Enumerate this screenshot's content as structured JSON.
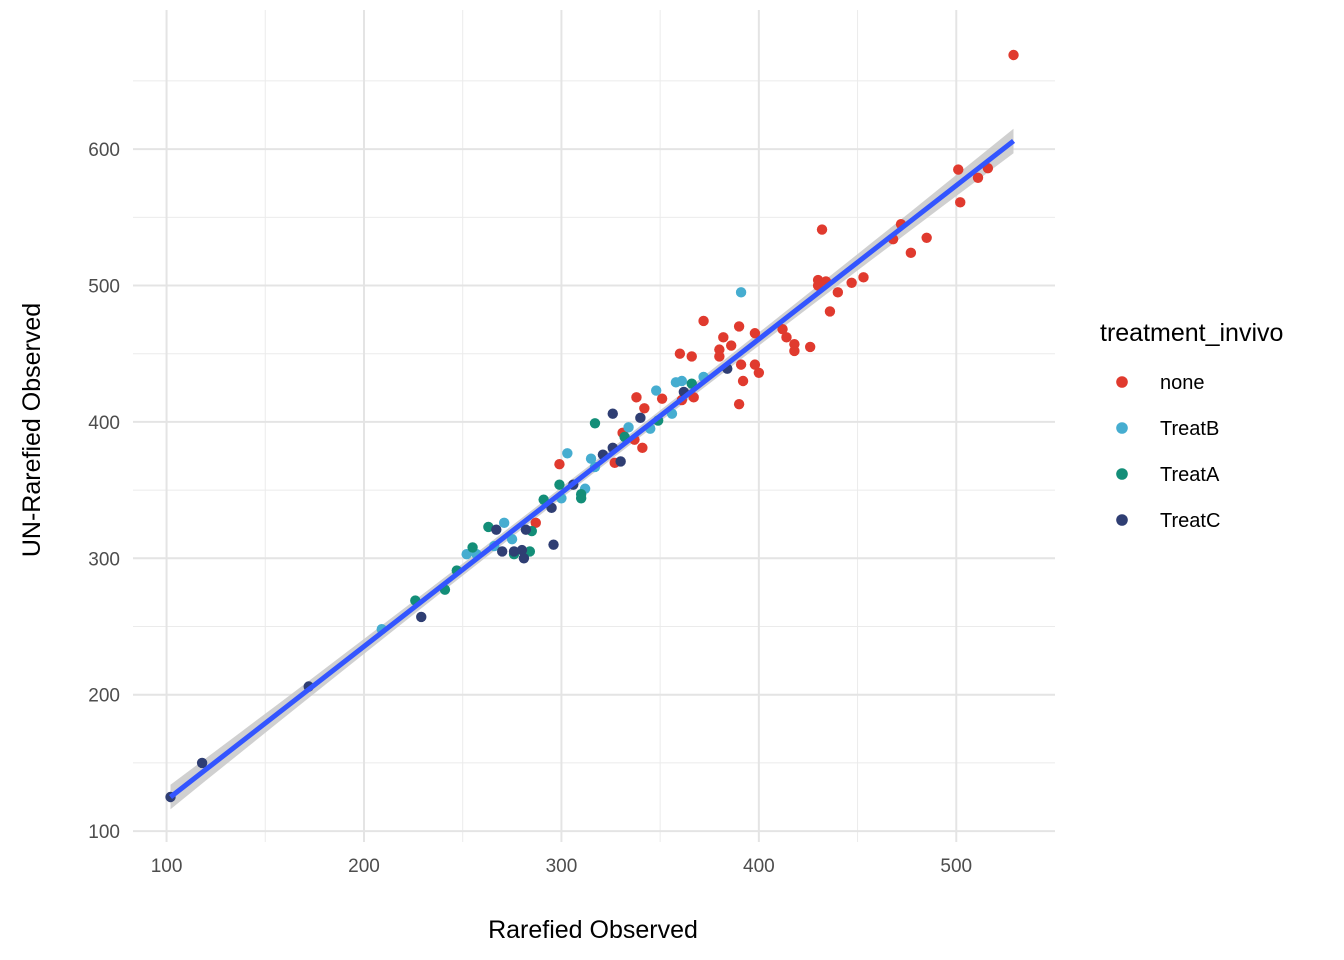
{
  "chart_data": {
    "type": "scatter",
    "xlabel": "Rarefied Observed",
    "ylabel": "UN-Rarefied Observed",
    "xlim": [
      83,
      550
    ],
    "ylim": [
      92,
      702
    ],
    "x_ticks": [
      100,
      200,
      300,
      400,
      500
    ],
    "y_ticks": [
      100,
      200,
      300,
      400,
      500,
      600
    ],
    "x_tick_labels": [
      "100",
      "200",
      "300",
      "400",
      "500"
    ],
    "y_tick_labels": [
      "100",
      "200",
      "300",
      "400",
      "500",
      "600"
    ],
    "grid": true,
    "legend": {
      "title": "treatment_invivo",
      "position": "right",
      "entries": [
        {
          "label": "none",
          "color": "#E03A2E"
        },
        {
          "label": "TreatB",
          "color": "#46ADD0"
        },
        {
          "label": "TreatA",
          "color": "#138E78"
        },
        {
          "label": "TreatC",
          "color": "#2F3E73"
        }
      ]
    },
    "trend_line": {
      "color": "#3355FF",
      "band_color": "#C8C8C8",
      "points": [
        [
          102,
          125
        ],
        [
          529,
          606
        ]
      ],
      "band_halfwidth_ends": 9,
      "band_halfwidth_mid": 4
    },
    "series": [
      {
        "name": "none",
        "color": "#E03A2E",
        "points": [
          [
            529,
            669
          ],
          [
            501,
            585
          ],
          [
            516,
            586
          ],
          [
            511,
            579
          ],
          [
            502,
            561
          ],
          [
            472,
            545
          ],
          [
            468,
            534
          ],
          [
            485,
            535
          ],
          [
            477,
            524
          ],
          [
            432,
            541
          ],
          [
            430,
            504
          ],
          [
            434,
            503
          ],
          [
            447,
            502
          ],
          [
            453,
            506
          ],
          [
            430,
            500
          ],
          [
            440,
            495
          ],
          [
            436,
            481
          ],
          [
            426,
            455
          ],
          [
            412,
            468
          ],
          [
            414,
            462
          ],
          [
            418,
            457
          ],
          [
            418,
            452
          ],
          [
            398,
            465
          ],
          [
            390,
            470
          ],
          [
            391,
            442
          ],
          [
            392,
            430
          ],
          [
            390,
            413
          ],
          [
            398,
            442
          ],
          [
            400,
            436
          ],
          [
            386,
            456
          ],
          [
            382,
            462
          ],
          [
            380,
            453
          ],
          [
            380,
            448
          ],
          [
            372,
            474
          ],
          [
            360,
            450
          ],
          [
            366,
            448
          ],
          [
            367,
            418
          ],
          [
            361,
            416
          ],
          [
            351,
            417
          ],
          [
            338,
            418
          ],
          [
            342,
            410
          ],
          [
            337,
            387
          ],
          [
            341,
            381
          ],
          [
            331,
            392
          ],
          [
            327,
            370
          ],
          [
            299,
            369
          ],
          [
            287,
            326
          ]
        ]
      },
      {
        "name": "TreatB",
        "color": "#46ADD0",
        "points": [
          [
            391,
            495
          ],
          [
            372,
            433
          ],
          [
            361,
            430
          ],
          [
            358,
            429
          ],
          [
            348,
            423
          ],
          [
            345,
            395
          ],
          [
            356,
            406
          ],
          [
            334,
            396
          ],
          [
            303,
            377
          ],
          [
            315,
            373
          ],
          [
            317,
            367
          ],
          [
            312,
            351
          ],
          [
            300,
            344
          ],
          [
            271,
            326
          ],
          [
            275,
            314
          ],
          [
            252,
            303
          ],
          [
            266,
            309
          ],
          [
            257,
            303
          ],
          [
            209,
            248
          ]
        ]
      },
      {
        "name": "TreatA",
        "color": "#138E78",
        "points": [
          [
            366,
            428
          ],
          [
            349,
            401
          ],
          [
            332,
            389
          ],
          [
            317,
            399
          ],
          [
            299,
            354
          ],
          [
            310,
            347
          ],
          [
            310,
            344
          ],
          [
            291,
            343
          ],
          [
            285,
            320
          ],
          [
            284,
            305
          ],
          [
            276,
            303
          ],
          [
            263,
            323
          ],
          [
            255,
            308
          ],
          [
            247,
            291
          ],
          [
            241,
            277
          ],
          [
            226,
            269
          ]
        ]
      },
      {
        "name": "TreatC",
        "color": "#2F3E73",
        "points": [
          [
            384,
            439
          ],
          [
            362,
            422
          ],
          [
            340,
            403
          ],
          [
            326,
            406
          ],
          [
            330,
            371
          ],
          [
            321,
            376
          ],
          [
            326,
            381
          ],
          [
            306,
            354
          ],
          [
            295,
            337
          ],
          [
            296,
            310
          ],
          [
            282,
            321
          ],
          [
            280,
            306
          ],
          [
            276,
            305
          ],
          [
            281,
            300
          ],
          [
            270,
            305
          ],
          [
            267,
            321
          ],
          [
            229,
            257
          ],
          [
            172,
            206
          ],
          [
            118,
            150
          ],
          [
            102,
            125
          ]
        ]
      }
    ]
  }
}
